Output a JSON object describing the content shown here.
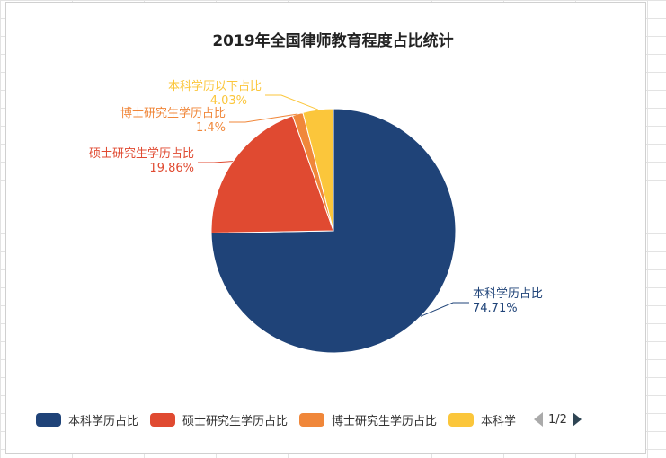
{
  "chart_data": {
    "type": "pie",
    "title": "2019年全国律师教育程度占比统计",
    "series": [
      {
        "name": "本科学历占比",
        "value": 74.71,
        "label": "74.71%",
        "color": "#1f4378"
      },
      {
        "name": "硕士研究生学历占比",
        "value": 19.86,
        "label": "19.86%",
        "color": "#e04a31"
      },
      {
        "name": "博士研究生学历占比",
        "value": 1.4,
        "label": "1.4%",
        "color": "#f0873a"
      },
      {
        "name": "本科学历以下占比",
        "value": 4.03,
        "label": "4.03%",
        "color": "#fbc63b"
      }
    ],
    "legend": {
      "position": "bottom",
      "visible_items": [
        "本科学历占比",
        "硕士研究生学历占比",
        "博士研究生学历占比",
        "本科学"
      ],
      "page": "1/2"
    }
  }
}
